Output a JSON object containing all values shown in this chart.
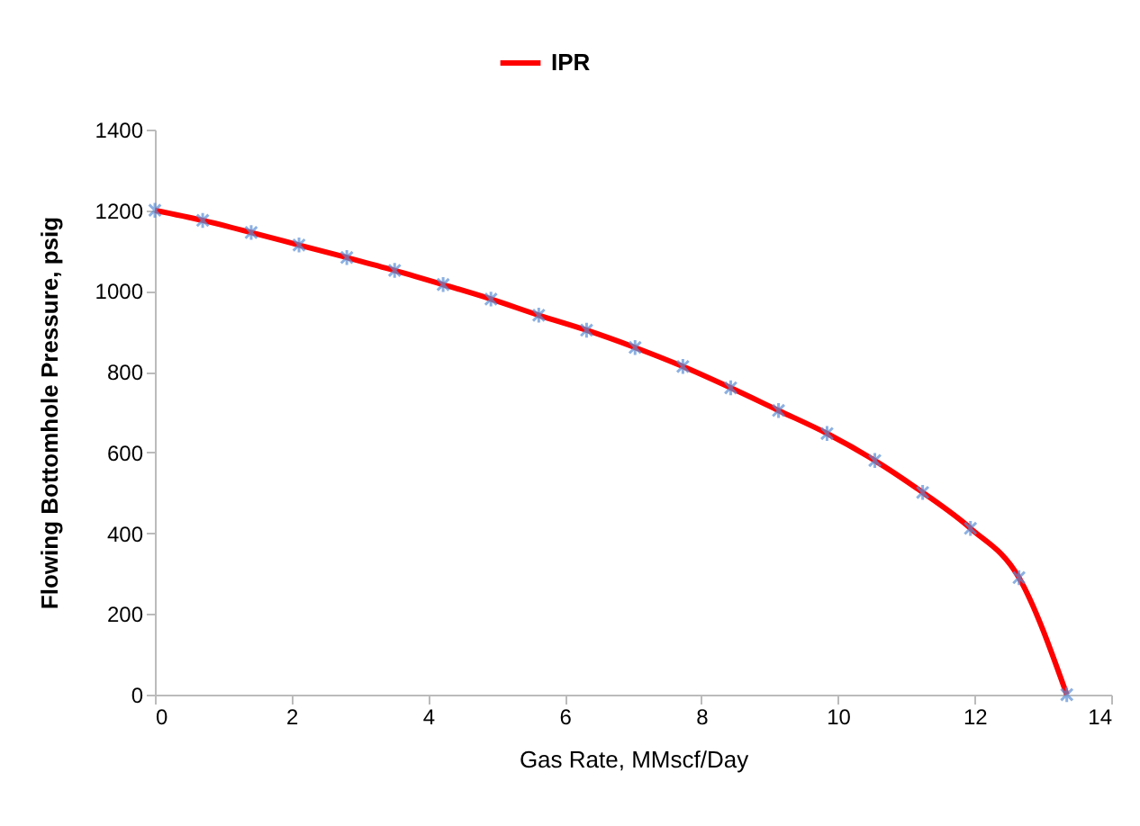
{
  "chart_data": {
    "type": "line",
    "xlabel": "Gas Rate, MMscf/Day",
    "ylabel": "Flowing Bottomhole Pressure, psig",
    "x": [
      0,
      0.7,
      1.41,
      2.11,
      2.81,
      3.51,
      4.22,
      4.92,
      5.62,
      6.32,
      7.03,
      7.73,
      8.43,
      9.13,
      9.84,
      10.54,
      11.24,
      11.94,
      12.65,
      13.35
    ],
    "series": [
      {
        "name": "IPR",
        "color": "#ff0000",
        "values": [
          1200,
          1175,
          1145,
          1114,
          1083,
          1051,
          1016,
          980,
          940,
          903,
          860,
          813,
          760,
          704,
          647,
          580,
          501,
          412,
          290,
          0
        ]
      }
    ],
    "xlim": [
      0,
      14
    ],
    "xticks": [
      0,
      2,
      4,
      6,
      8,
      10,
      12,
      14
    ],
    "ylim": [
      0,
      1400
    ],
    "yticks": [
      0,
      200,
      400,
      600,
      800,
      1000,
      1200,
      1400
    ],
    "grid": false,
    "legend": "top",
    "marker": "cross",
    "line_style": "solid"
  }
}
